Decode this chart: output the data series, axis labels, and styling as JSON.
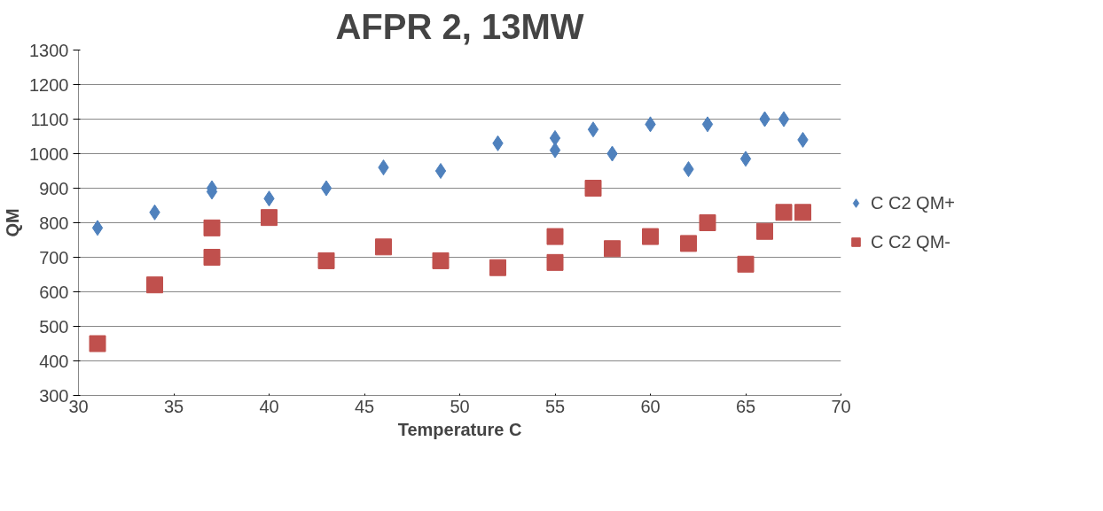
{
  "chart_data": {
    "type": "scatter",
    "title": "AFPR 2, 13MW",
    "xlabel": "Temperature C",
    "ylabel": "QM",
    "xlim": [
      30,
      70
    ],
    "xticks": [
      30,
      35,
      40,
      45,
      50,
      55,
      60,
      65,
      70
    ],
    "ylim": [
      300,
      1300
    ],
    "yticks": [
      300,
      400,
      500,
      600,
      700,
      800,
      900,
      1000,
      1100,
      1200,
      1300
    ],
    "grid": "y",
    "legend": "right",
    "series": [
      {
        "name": "C C2 QM+",
        "color": "#4f81bd",
        "marker": "diamond",
        "x": [
          31,
          34,
          37,
          37,
          40,
          43,
          46,
          49,
          52,
          55,
          55,
          57,
          58,
          60,
          62,
          63,
          65,
          66,
          67,
          68
        ],
        "values": [
          785,
          830,
          900,
          890,
          870,
          900,
          960,
          950,
          1030,
          1045,
          1010,
          1070,
          1000,
          1085,
          955,
          1085,
          985,
          1100,
          1100,
          1040
        ]
      },
      {
        "name": "C C2 QM-",
        "color": "#c0504d",
        "marker": "square",
        "x": [
          31,
          34,
          37,
          37,
          40,
          43,
          46,
          49,
          52,
          55,
          55,
          57,
          58,
          60,
          62,
          63,
          65,
          66,
          67,
          68
        ],
        "values": [
          450,
          620,
          785,
          700,
          815,
          690,
          730,
          690,
          670,
          760,
          685,
          900,
          725,
          760,
          740,
          800,
          680,
          775,
          830,
          830
        ]
      }
    ]
  }
}
